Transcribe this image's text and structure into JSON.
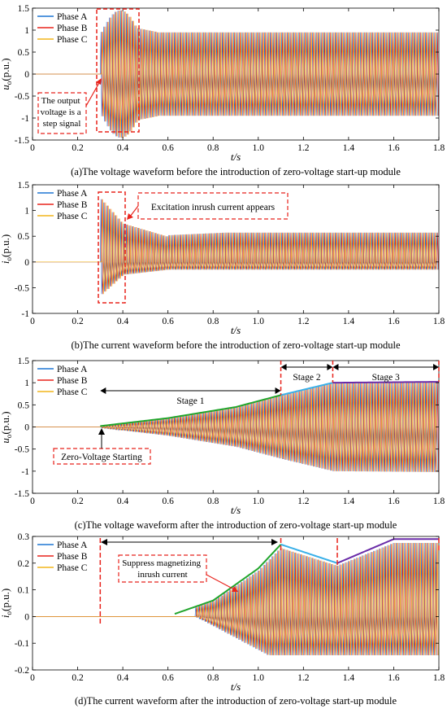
{
  "colors": {
    "phase_a": "#1f77d4",
    "phase_b": "#e8231c",
    "phase_c": "#f2b51c",
    "stage_green": "#22a52c",
    "stage_blue": "#3ab0e8",
    "stage_purple": "#6a2ca8",
    "annotation_red": "#e8231c"
  },
  "chart_data": [
    {
      "type": "line",
      "caption": "(a)The voltage waveform before the introduction of zero-voltage start-up module",
      "ylabel": "u",
      "ylabel_sub": "o",
      "ylabel_unit": "(p.u.)",
      "xlabel": "t/s",
      "xlim": [
        0,
        1.8
      ],
      "ylim": [
        -1.5,
        1.5
      ],
      "xticks": [
        "0",
        "0.2",
        "0.4",
        "0.6",
        "0.8",
        "1.0",
        "1.2",
        "1.4",
        "1.6",
        "1.8"
      ],
      "yticks": [
        "-1.5",
        "-1",
        "-0.5",
        "0",
        "0.5",
        "1",
        "1.5"
      ],
      "legend": [
        "Phase A",
        "Phase B",
        "Phase C"
      ],
      "legend_position": "top-left",
      "series": [
        {
          "name": "Phase A",
          "start_t": 0.3,
          "steady_amplitude": 0.95,
          "peak_amplitude": 1.45
        },
        {
          "name": "Phase B",
          "start_t": 0.3,
          "steady_amplitude": 0.95,
          "peak_amplitude": 1.45
        },
        {
          "name": "Phase C",
          "start_t": 0.3,
          "steady_amplitude": 0.95,
          "peak_amplitude": 1.45
        }
      ],
      "annotations": [
        {
          "text": [
            "The output",
            "voltage is a",
            "step signal"
          ]
        }
      ]
    },
    {
      "type": "line",
      "caption": "(b)The current waveform before the introduction of zero-voltage start-up module",
      "ylabel": "i",
      "ylabel_sub": "o",
      "ylabel_unit": "(p.u.)",
      "xlabel": "t/s",
      "xlim": [
        0,
        1.8
      ],
      "ylim": [
        -1,
        1.5
      ],
      "xticks": [
        "0",
        "0.2",
        "0.4",
        "0.6",
        "0.8",
        "1.0",
        "1.2",
        "1.4",
        "1.6",
        "1.8"
      ],
      "yticks": [
        "-1",
        "-0.5",
        "0",
        "0.5",
        "1",
        "1.5"
      ],
      "legend": [
        "Phase A",
        "Phase B",
        "Phase C"
      ],
      "legend_position": "top-left",
      "series": [
        {
          "name": "Phase A",
          "start_t": 0.3,
          "steady_max": 0.57,
          "steady_min": -0.15,
          "peak": 1.25
        },
        {
          "name": "Phase B",
          "start_t": 0.3,
          "steady_max": 0.57,
          "steady_min": -0.15,
          "peak": 1.1
        },
        {
          "name": "Phase C",
          "start_t": 0.3,
          "steady_max": 0.57,
          "steady_min": -0.15,
          "peak": -0.65
        }
      ],
      "annotations": [
        {
          "text": [
            "Excitation inrush current appears"
          ]
        }
      ]
    },
    {
      "type": "line",
      "caption": "(c)The voltage waveform after the introduction of zero-voltage start-up module",
      "ylabel": "u",
      "ylabel_sub": "o",
      "ylabel_unit": "(p.u.)",
      "xlabel": "t/s",
      "xlim": [
        0,
        1.8
      ],
      "ylim": [
        -1.5,
        1.5
      ],
      "xticks": [
        "0",
        "0.2",
        "0.4",
        "0.6",
        "0.8",
        "1.0",
        "1.2",
        "1.4",
        "1.6",
        "1.8"
      ],
      "yticks": [
        "-1.5",
        "-1",
        "-0.5",
        "0",
        "0.5",
        "1",
        "1.5"
      ],
      "legend": [
        "Phase A",
        "Phase B",
        "Phase C"
      ],
      "legend_position": "top-left",
      "envelope": [
        {
          "t": 0.3,
          "v": 0.02
        },
        {
          "t": 0.6,
          "v": 0.2
        },
        {
          "t": 0.9,
          "v": 0.45
        },
        {
          "t": 1.1,
          "v": 0.72
        },
        {
          "t": 1.33,
          "v": 1.0
        },
        {
          "t": 1.8,
          "v": 1.02
        }
      ],
      "stages": [
        {
          "label": "Stage 1",
          "t0": 0.3,
          "t1": 1.1
        },
        {
          "label": "Stage 2",
          "t0": 1.1,
          "t1": 1.33
        },
        {
          "label": "Stage 3",
          "t0": 1.33,
          "t1": 1.8
        }
      ],
      "annotations": [
        {
          "text": [
            "Zero-Voltage Starting"
          ]
        }
      ]
    },
    {
      "type": "line",
      "caption": "(d)The current waveform after the introduction of zero-voltage start-up module",
      "ylabel": "i",
      "ylabel_sub": "o",
      "ylabel_unit": "(p.u.)",
      "xlabel": "t/s",
      "xlim": [
        0,
        1.8
      ],
      "ylim": [
        -0.2,
        0.3
      ],
      "xticks": [
        "0",
        "0.2",
        "0.4",
        "0.6",
        "0.8",
        "1.0",
        "1.2",
        "1.4",
        "1.6",
        "1.8"
      ],
      "yticks": [
        "-0.2",
        "-0.1",
        "0",
        "0.1",
        "0.2",
        "0.3"
      ],
      "legend": [
        "Phase A",
        "Phase B",
        "Phase C"
      ],
      "legend_position": "top-left",
      "envelope": [
        {
          "t": 0.63,
          "v": 0.01
        },
        {
          "t": 0.8,
          "v": 0.06
        },
        {
          "t": 1.0,
          "v": 0.18
        },
        {
          "t": 1.1,
          "v": 0.27
        },
        {
          "t": 1.35,
          "v": 0.2
        },
        {
          "t": 1.6,
          "v": 0.29
        },
        {
          "t": 1.8,
          "v": 0.29
        }
      ],
      "markers_t": [
        0.3,
        1.1,
        1.35,
        1.8
      ],
      "annotations": [
        {
          "text": [
            "Suppress magnetizing",
            "inrush current"
          ]
        }
      ]
    }
  ]
}
